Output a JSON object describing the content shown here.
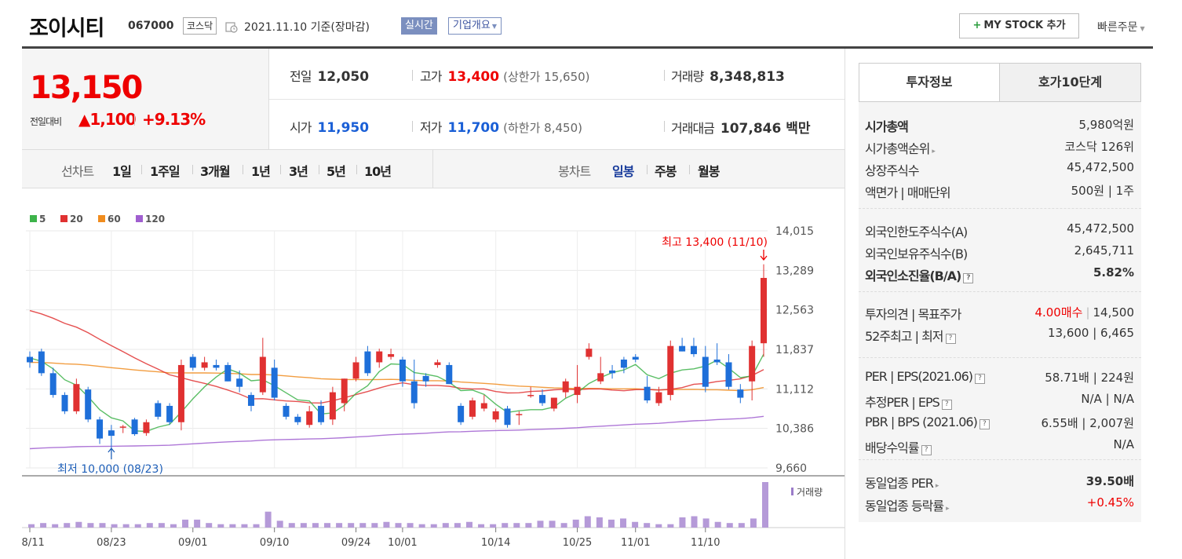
{
  "header": {
    "name": "조이시티",
    "code": "067000",
    "market": "코스닥",
    "date": "2021.11.10 기준(장마감)",
    "realtime": "실시간",
    "corp_menu": "기업개요",
    "mystock": "MY STOCK 추가",
    "quick_order": "빠른주문"
  },
  "price": {
    "now": "13,150",
    "diff_label": "전일대비",
    "diff": "▲1,100",
    "diff_pct": "+9.13%"
  },
  "info": {
    "prev_label": "전일",
    "prev": "12,050",
    "high_label": "고가",
    "high": "13,400",
    "upper": "(상한가 15,650)",
    "volume_label": "거래량",
    "volume": "8,348,813",
    "open_label": "시가",
    "open": "11,950",
    "low_label": "저가",
    "low": "11,700",
    "lower": "(하한가 8,450)",
    "amount_label": "거래대금",
    "amount": "107,846 백만"
  },
  "period": {
    "line_label": "선차트",
    "line_items": [
      "1일",
      "1주일",
      "3개월",
      "1년",
      "3년",
      "5년",
      "10년"
    ],
    "candle_label": "봉차트",
    "candle_items": [
      "일봉",
      "주봉",
      "월봉"
    ],
    "active_candle": "일봉"
  },
  "chart_data": {
    "type": "candlestick",
    "legend": [
      "5",
      "20",
      "60",
      "120"
    ],
    "legend_colors": [
      "#3db34a",
      "#e03131",
      "#f08c1e",
      "#a05fd0"
    ],
    "yticks": [
      "14,015",
      "13,289",
      "12,563",
      "11,837",
      "11,112",
      "10,386",
      "9,660"
    ],
    "ylim": [
      9660,
      14015
    ],
    "xticks": [
      "08/11",
      "08/23",
      "09/01",
      "09/10",
      "09/24",
      "10/01",
      "10/14",
      "10/25",
      "11/01",
      "11/10"
    ],
    "xtick_index": [
      0,
      7,
      14,
      21,
      28,
      32,
      40,
      47,
      52,
      58
    ],
    "max_label": "최고 13,400 (11/10)",
    "min_label": "최저 10,000 (08/23)",
    "volume_label": "거래량",
    "candles": [
      [
        11700,
        11800,
        11500,
        11600
      ],
      [
        11800,
        11850,
        11350,
        11400
      ],
      [
        11400,
        11500,
        10950,
        11000
      ],
      [
        11000,
        11050,
        10650,
        10700
      ],
      [
        10700,
        11300,
        10650,
        11200
      ],
      [
        11100,
        11150,
        10500,
        10550
      ],
      [
        10550,
        10600,
        10100,
        10200
      ],
      [
        10350,
        10450,
        10000,
        10250
      ],
      [
        10400,
        10450,
        10300,
        10420
      ],
      [
        10550,
        10580,
        10250,
        10280
      ],
      [
        10300,
        10550,
        10250,
        10500
      ],
      [
        10850,
        10900,
        10550,
        10600
      ],
      [
        10800,
        10850,
        10450,
        10500
      ],
      [
        10500,
        11650,
        10350,
        11550
      ],
      [
        11700,
        11750,
        11450,
        11500
      ],
      [
        11500,
        11700,
        11450,
        11600
      ],
      [
        11550,
        11650,
        11450,
        11500
      ],
      [
        11550,
        11600,
        11250,
        11250
      ],
      [
        11300,
        11450,
        11050,
        11150
      ],
      [
        11000,
        11050,
        10700,
        10800
      ],
      [
        11050,
        12050,
        11000,
        11700
      ],
      [
        11500,
        11650,
        10900,
        10950
      ],
      [
        10800,
        10850,
        10550,
        10600
      ],
      [
        10600,
        10650,
        10450,
        10500
      ],
      [
        10450,
        10800,
        10400,
        10700
      ],
      [
        10800,
        10900,
        10450,
        10500
      ],
      [
        10550,
        11150,
        10450,
        11050
      ],
      [
        10850,
        11300,
        10700,
        11300
      ],
      [
        11300,
        11700,
        11250,
        11600
      ],
      [
        11800,
        11900,
        11350,
        11400
      ],
      [
        11600,
        11850,
        11500,
        11800
      ],
      [
        11700,
        11850,
        11650,
        11750
      ],
      [
        11650,
        11700,
        11150,
        11250
      ],
      [
        11250,
        11650,
        10750,
        10850
      ],
      [
        11350,
        11400,
        11150,
        11250
      ],
      [
        11550,
        11650,
        11500,
        11600
      ],
      [
        11550,
        11600,
        11200,
        11200
      ],
      [
        10800,
        10850,
        10450,
        10500
      ],
      [
        10600,
        10950,
        10550,
        10900
      ],
      [
        10750,
        11000,
        10700,
        10850
      ],
      [
        10550,
        10750,
        10500,
        10700
      ],
      [
        10750,
        10800,
        10400,
        10450
      ],
      [
        10650,
        10700,
        10450,
        10650
      ],
      [
        11000,
        11150,
        10950,
        11000
      ],
      [
        11000,
        11100,
        10800,
        10850
      ],
      [
        10750,
        10950,
        10700,
        10950
      ],
      [
        11050,
        11300,
        10950,
        11250
      ],
      [
        11000,
        11550,
        10850,
        11150
      ],
      [
        11700,
        11950,
        11650,
        11850
      ],
      [
        11250,
        11700,
        11200,
        11400
      ],
      [
        11450,
        11550,
        11300,
        11400
      ],
      [
        11650,
        11700,
        11400,
        11500
      ],
      [
        11700,
        11750,
        11600,
        11650
      ],
      [
        11150,
        11350,
        10850,
        10900
      ],
      [
        10850,
        11150,
        10800,
        11050
      ],
      [
        11000,
        12000,
        10900,
        11900
      ],
      [
        11900,
        12050,
        11800,
        11800
      ],
      [
        11900,
        12050,
        11700,
        11750
      ],
      [
        11700,
        11900,
        11050,
        11150
      ]
    ],
    "last_candles": [
      [
        11650,
        11950,
        11550,
        11600
      ],
      [
        11600,
        11750,
        11100,
        11150
      ],
      [
        11100,
        11200,
        10850,
        10950
      ],
      [
        11250,
        12000,
        10900,
        11900
      ],
      [
        11950,
        13400,
        11700,
        13150
      ]
    ],
    "volume": [
      3,
      4,
      3,
      4,
      5,
      4,
      4,
      3,
      3,
      3,
      4,
      4,
      3,
      7,
      7,
      4,
      3,
      3,
      3,
      3,
      14,
      6,
      4,
      4,
      4,
      4,
      4,
      4,
      4,
      4,
      5,
      4,
      4,
      3,
      3,
      4,
      4,
      5,
      3,
      3,
      4,
      4,
      4,
      6,
      6,
      4,
      7,
      10,
      9,
      7,
      8,
      5,
      4,
      3,
      3,
      9,
      10,
      8,
      5,
      4,
      4,
      8,
      40
    ]
  },
  "side": {
    "tab_on": "투자정보",
    "tab_off": "호가10단계",
    "g1": [
      {
        "l": "시가총액",
        "r": "5,980억원",
        "lb": true
      },
      {
        "l": "시가총액순위",
        "r": "코스닥 126위",
        "caret": true
      },
      {
        "l": "상장주식수",
        "r": "45,472,500"
      },
      {
        "l": "액면가 | 매매단위",
        "r": "500원 | 1주"
      }
    ],
    "g2": [
      {
        "l": "외국인한도주식수(A)",
        "r": "45,472,500"
      },
      {
        "l": "외국인보유주식수(B)",
        "r": "2,645,711"
      },
      {
        "l": "외국인소진율(B/A)",
        "r": "5.82%",
        "rb": true,
        "lb": true,
        "q": true
      }
    ],
    "g3": [
      {
        "l": "투자의견 | 목표주가",
        "r_red": "4.00매수",
        "r": "14,500"
      },
      {
        "l": "52주최고 | 최저",
        "r": "13,600 | 6,465",
        "q": true
      }
    ],
    "g4": [
      {
        "l": "PER | EPS(2021.06)",
        "r": "58.71배 | 224원",
        "q": true
      },
      {
        "l": "추정PER | EPS",
        "r": "N/A | N/A",
        "q": true
      },
      {
        "l": "PBR | BPS (2021.06)",
        "r": "6.55배 | 2,007원",
        "q": true
      },
      {
        "l": "배당수익률",
        "r": "N/A",
        "q": true
      }
    ],
    "g5": [
      {
        "l": "동일업종 PER",
        "r": "39.50배",
        "rb": true,
        "caret": true
      },
      {
        "l": "동일업종 등락률",
        "r": "+0.45%",
        "red": true,
        "caret": true
      }
    ]
  }
}
